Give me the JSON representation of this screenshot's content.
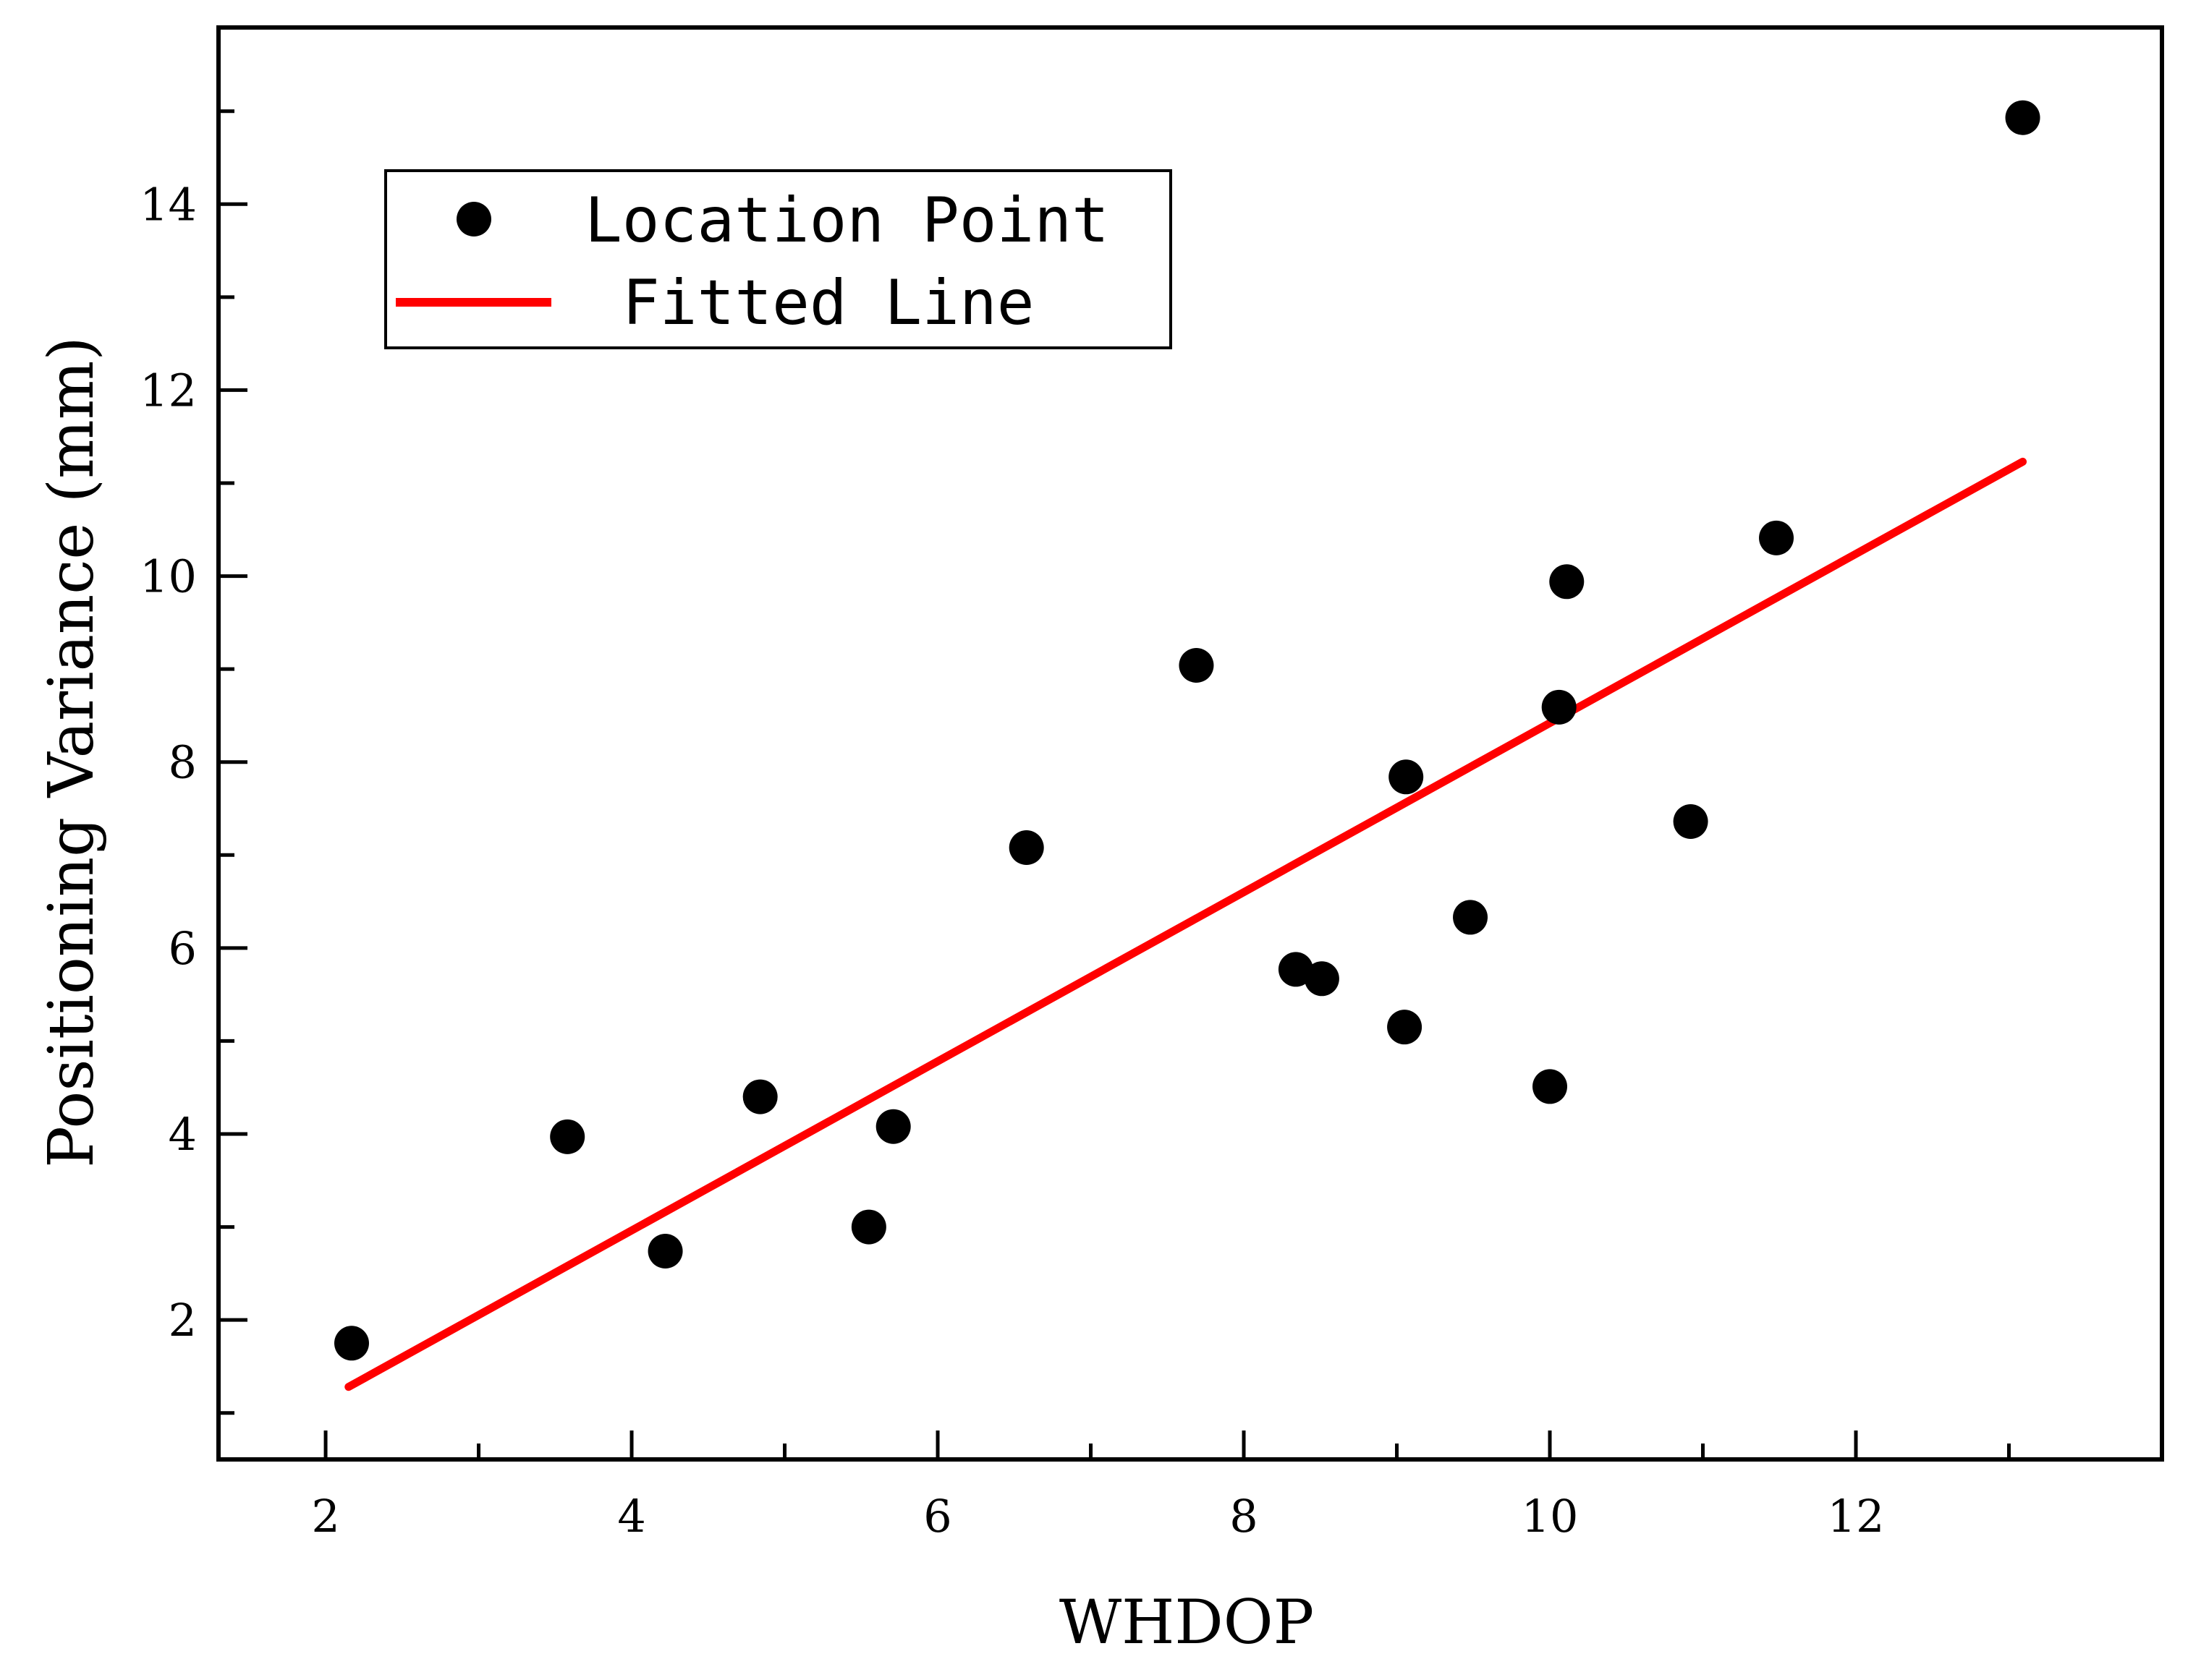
{
  "chart_data": {
    "type": "scatter",
    "title": "",
    "xlabel": "WHDOP",
    "ylabel": "Positioning Variance (mm)",
    "xlim": [
      1.3,
      14.0
    ],
    "ylim": [
      0.5,
      15.9
    ],
    "xticks": [
      2,
      4,
      6,
      8,
      10,
      12
    ],
    "yticks": [
      2,
      4,
      6,
      8,
      10,
      12,
      14
    ],
    "x_minor_step": 1,
    "y_minor_step": 1,
    "grid": false,
    "legend": {
      "position": "top-left"
    },
    "series": [
      {
        "name": "Location Point",
        "kind": "scatter",
        "color": "#000000",
        "points": [
          [
            2.17,
            1.75
          ],
          [
            3.58,
            3.97
          ],
          [
            4.22,
            2.74
          ],
          [
            4.84,
            4.4
          ],
          [
            5.55,
            3.0
          ],
          [
            5.71,
            4.08
          ],
          [
            6.58,
            7.08
          ],
          [
            7.69,
            9.04
          ],
          [
            8.34,
            5.77
          ],
          [
            8.51,
            5.67
          ],
          [
            9.05,
            5.15
          ],
          [
            9.06,
            7.84
          ],
          [
            9.48,
            6.33
          ],
          [
            10.0,
            4.51
          ],
          [
            10.06,
            8.59
          ],
          [
            10.11,
            9.94
          ],
          [
            10.92,
            7.36
          ],
          [
            11.48,
            10.41
          ],
          [
            13.09,
            14.93
          ]
        ]
      },
      {
        "name": "Fitted Line",
        "kind": "line",
        "color": "#ff0000",
        "points": [
          [
            2.15,
            1.28
          ],
          [
            13.09,
            11.23
          ]
        ]
      }
    ]
  }
}
